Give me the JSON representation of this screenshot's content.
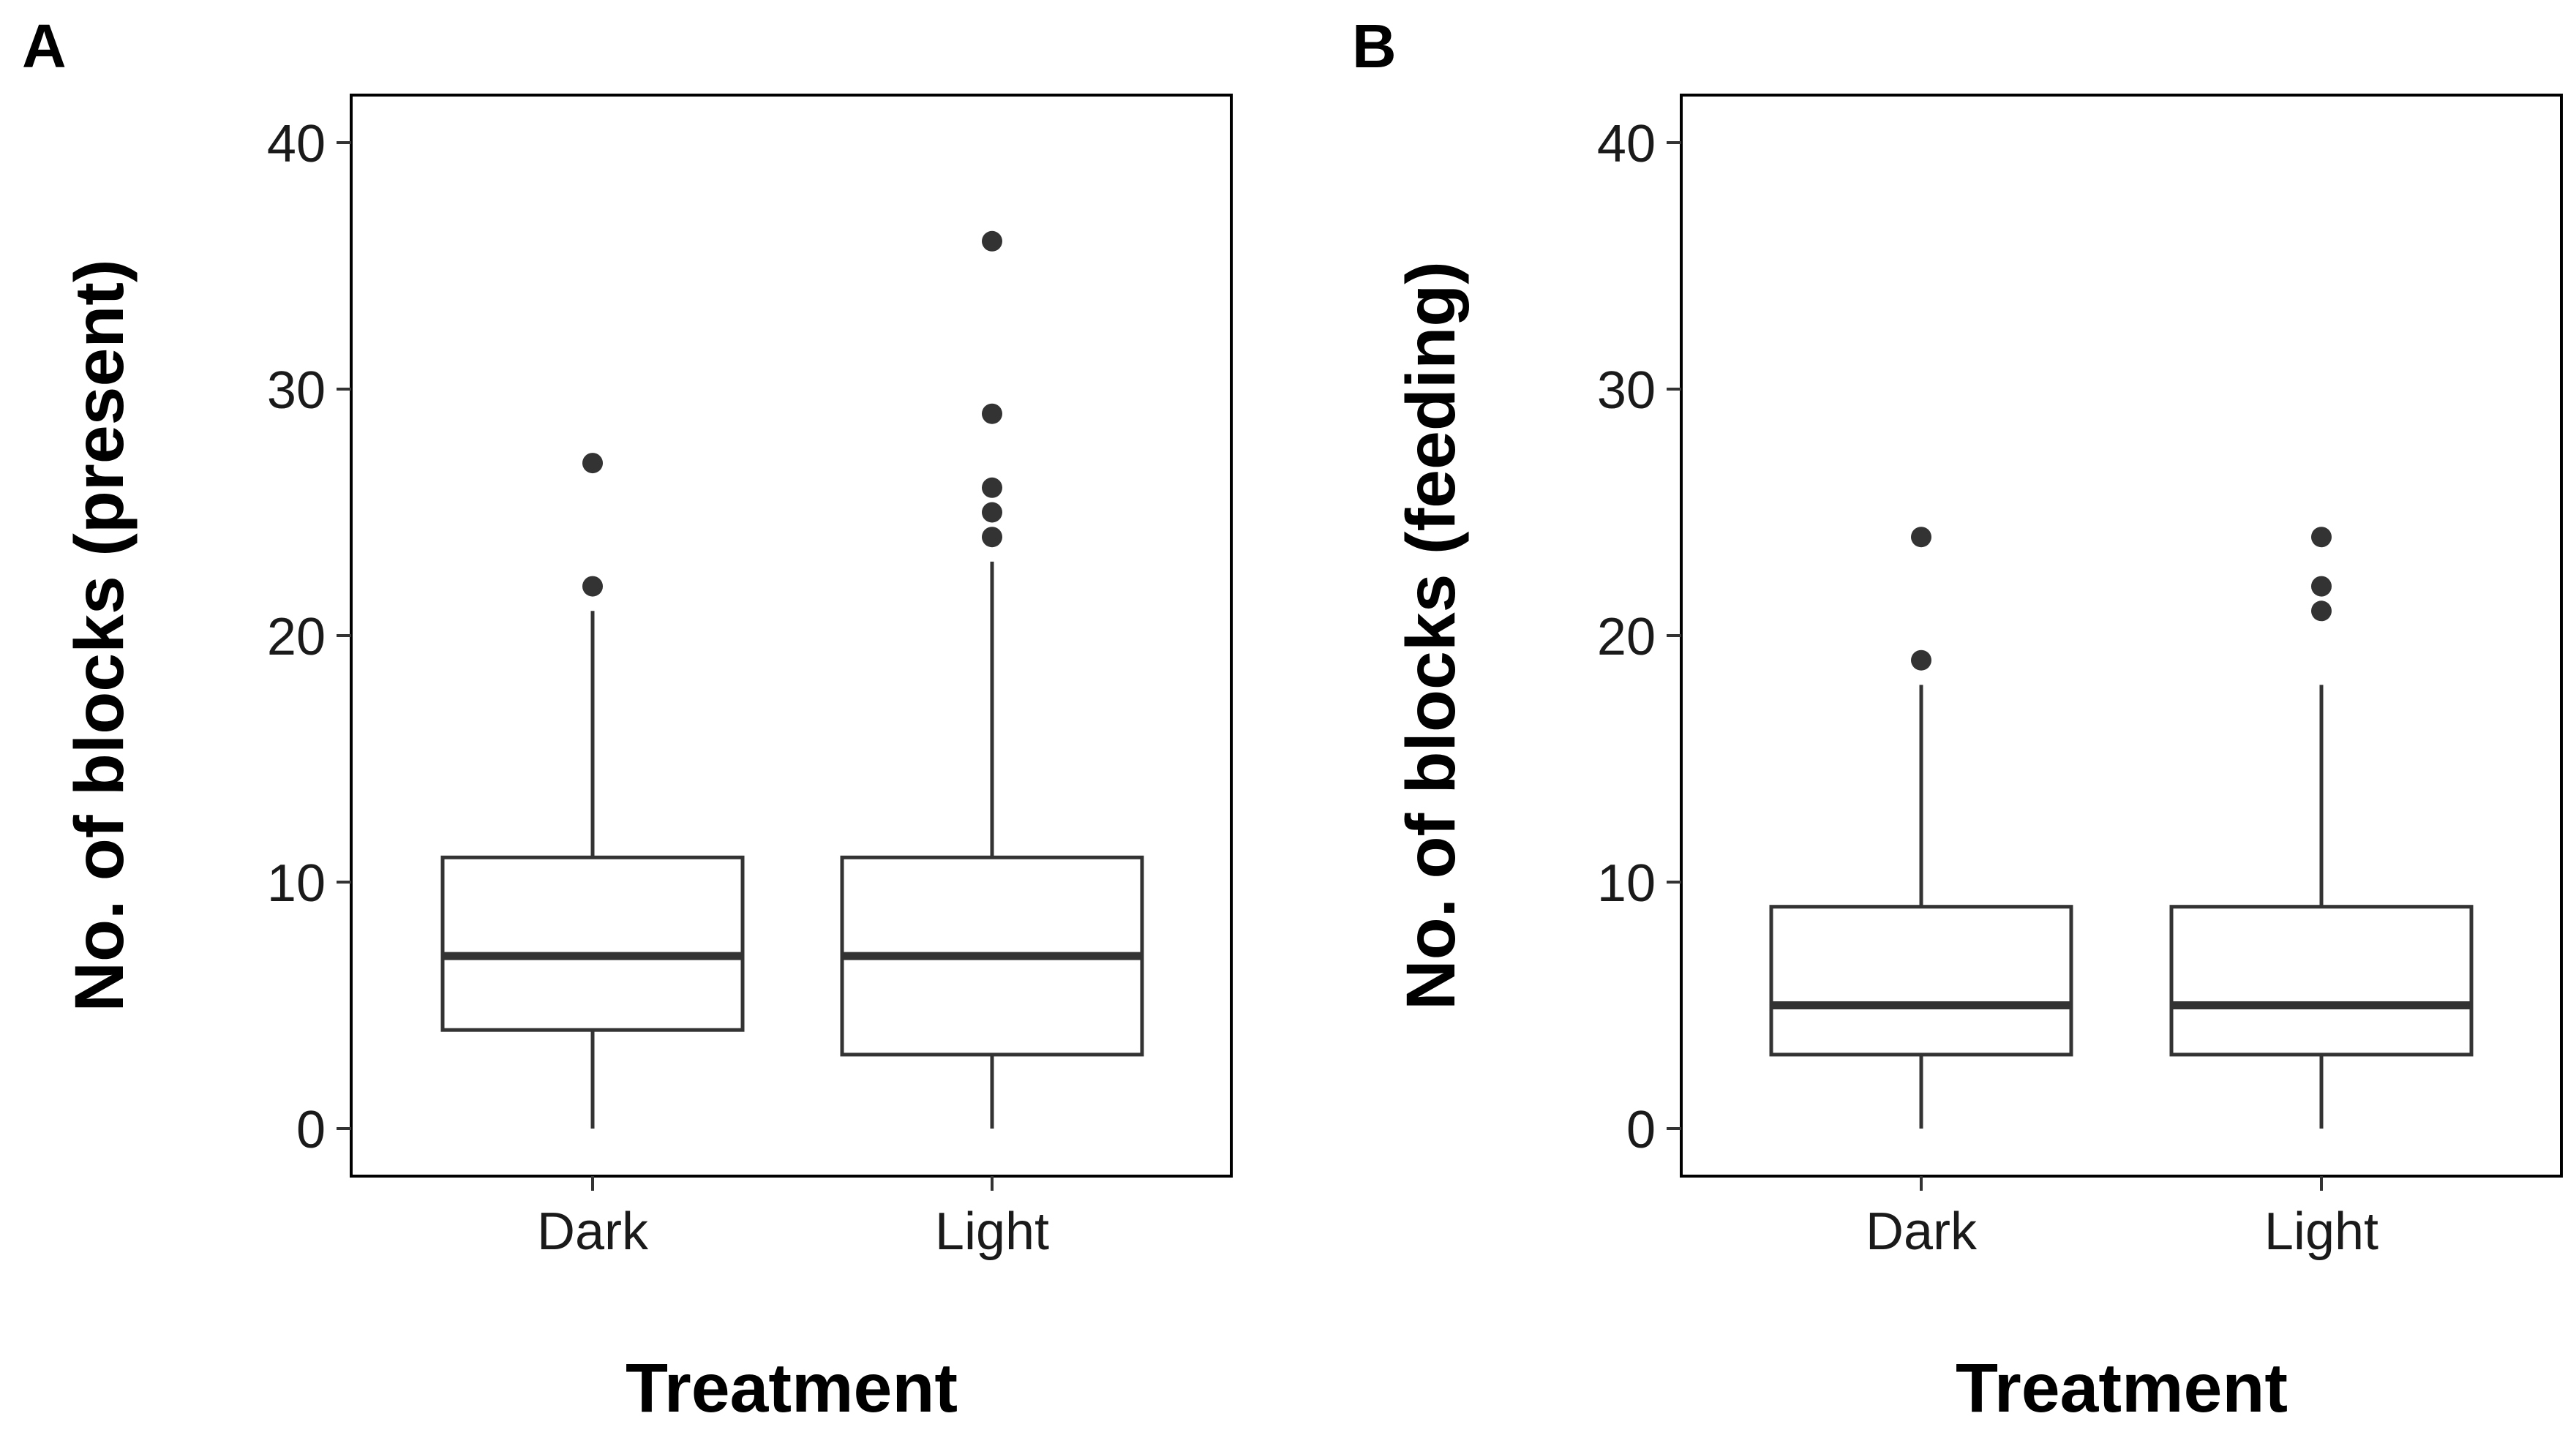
{
  "chart_data": [
    {
      "panel": "A",
      "type": "boxplot",
      "xlabel": "Treatment",
      "ylabel": "No. of blocks (present)",
      "ylim": [
        -2,
        42
      ],
      "yticks": [
        0,
        10,
        20,
        30,
        40
      ],
      "categories": [
        "Dark",
        "Light"
      ],
      "boxes": [
        {
          "category": "Dark",
          "min": 0,
          "q1": 4,
          "median": 7,
          "q3": 11,
          "max": 21,
          "outliers": [
            22,
            27
          ]
        },
        {
          "category": "Light",
          "min": 0,
          "q1": 3,
          "median": 7,
          "q3": 11,
          "max": 23,
          "outliers": [
            24,
            25,
            26,
            29,
            36
          ]
        }
      ]
    },
    {
      "panel": "B",
      "type": "boxplot",
      "xlabel": "Treatment",
      "ylabel": "No. of blocks (feeding)",
      "ylim": [
        -2,
        42
      ],
      "yticks": [
        0,
        10,
        20,
        30,
        40
      ],
      "categories": [
        "Dark",
        "Light"
      ],
      "boxes": [
        {
          "category": "Dark",
          "min": 0,
          "q1": 3,
          "median": 5,
          "q3": 9,
          "max": 18,
          "outliers": [
            19,
            24
          ]
        },
        {
          "category": "Light",
          "min": 0,
          "q1": 3,
          "median": 5,
          "q3": 9,
          "max": 18,
          "outliers": [
            21,
            22,
            24
          ]
        }
      ]
    }
  ],
  "colors": {
    "box_stroke": "#333333",
    "outlier": "#333333",
    "axis": "#000000"
  }
}
